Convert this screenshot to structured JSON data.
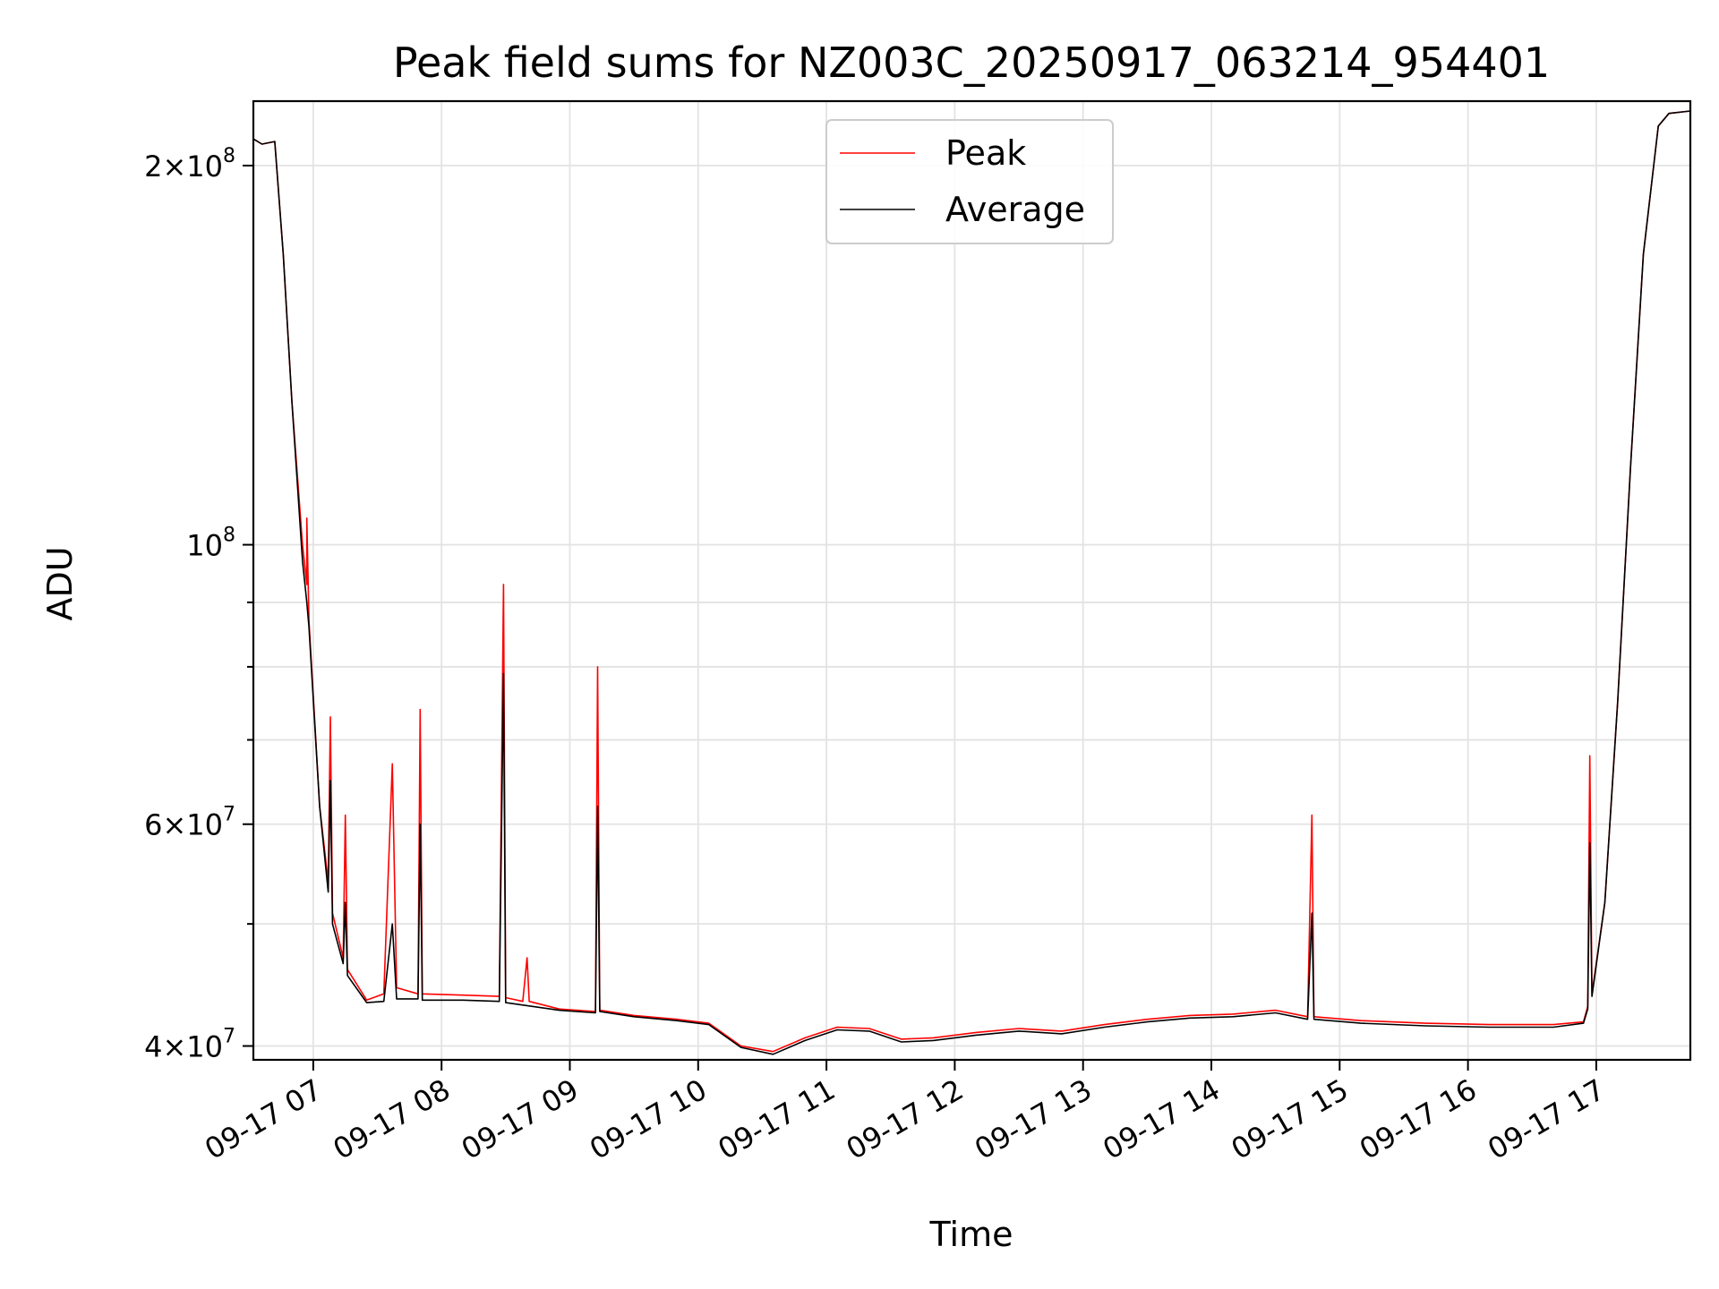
{
  "chart_data": {
    "type": "line",
    "title": "Peak field sums for NZ003C_20250917_063214_954401",
    "xlabel": "Time",
    "ylabel": "ADU",
    "y_scale": "log",
    "ylim": [
      39000000,
      225000000
    ],
    "xlim": [
      "2025-09-17 06:32",
      "2025-09-17 17:44"
    ],
    "grid": true,
    "legend": {
      "placement": "upper-center"
    },
    "x_ticks": [
      {
        "t": "2025-09-17 07:00",
        "label": "09-17 07"
      },
      {
        "t": "2025-09-17 08:00",
        "label": "09-17 08"
      },
      {
        "t": "2025-09-17 09:00",
        "label": "09-17 09"
      },
      {
        "t": "2025-09-17 10:00",
        "label": "09-17 10"
      },
      {
        "t": "2025-09-17 11:00",
        "label": "09-17 11"
      },
      {
        "t": "2025-09-17 12:00",
        "label": "09-17 12"
      },
      {
        "t": "2025-09-17 13:00",
        "label": "09-17 13"
      },
      {
        "t": "2025-09-17 14:00",
        "label": "09-17 14"
      },
      {
        "t": "2025-09-17 15:00",
        "label": "09-17 15"
      },
      {
        "t": "2025-09-17 16:00",
        "label": "09-17 16"
      },
      {
        "t": "2025-09-17 17:00",
        "label": "09-17 17"
      }
    ],
    "y_ticks": [
      {
        "value": 40000000,
        "mant": "4",
        "exp": "7"
      },
      {
        "value": 60000000,
        "mant": "6",
        "exp": "7"
      },
      {
        "value": 100000000,
        "mant": "",
        "exp": "8"
      },
      {
        "value": 200000000,
        "mant": "2",
        "exp": "8"
      }
    ],
    "y_minor_ticks": [
      50000000,
      70000000,
      80000000,
      90000000
    ],
    "series": [
      {
        "name": "Peak",
        "color": "#ff0000",
        "points": [
          [
            "2025-09-17 06:32",
            210000000
          ],
          [
            "2025-09-17 06:36",
            208000000
          ],
          [
            "2025-09-17 06:42",
            209000000
          ],
          [
            "2025-09-17 06:46",
            170000000
          ],
          [
            "2025-09-17 06:50",
            130000000
          ],
          [
            "2025-09-17 06:55",
            100000000
          ],
          [
            "2025-09-17 06:57",
            93000000
          ],
          [
            "2025-09-17 06:57",
            105000000
          ],
          [
            "2025-09-17 06:58",
            87000000
          ],
          [
            "2025-09-17 07:03",
            62000000
          ],
          [
            "2025-09-17 07:07",
            54000000
          ],
          [
            "2025-09-17 07:08",
            73000000
          ],
          [
            "2025-09-17 07:09",
            51000000
          ],
          [
            "2025-09-17 07:14",
            47000000
          ],
          [
            "2025-09-17 07:15",
            61000000
          ],
          [
            "2025-09-17 07:16",
            46000000
          ],
          [
            "2025-09-17 07:25",
            43500000
          ],
          [
            "2025-09-17 07:33",
            44000000
          ],
          [
            "2025-09-17 07:37",
            67000000
          ],
          [
            "2025-09-17 07:39",
            44500000
          ],
          [
            "2025-09-17 07:49",
            44000000
          ],
          [
            "2025-09-17 07:50",
            74000000
          ],
          [
            "2025-09-17 07:51",
            44000000
          ],
          [
            "2025-09-17 08:10",
            43900000
          ],
          [
            "2025-09-17 08:27",
            43800000
          ],
          [
            "2025-09-17 08:29",
            93000000
          ],
          [
            "2025-09-17 08:30",
            43700000
          ],
          [
            "2025-09-17 08:38",
            43400000
          ],
          [
            "2025-09-17 08:40",
            47000000
          ],
          [
            "2025-09-17 08:41",
            43400000
          ],
          [
            "2025-09-17 08:55",
            42800000
          ],
          [
            "2025-09-17 09:12",
            42600000
          ],
          [
            "2025-09-17 09:13",
            80000000
          ],
          [
            "2025-09-17 09:14",
            42700000
          ],
          [
            "2025-09-17 09:30",
            42300000
          ],
          [
            "2025-09-17 09:50",
            42000000
          ],
          [
            "2025-09-17 10:05",
            41700000
          ],
          [
            "2025-09-17 10:20",
            40000000
          ],
          [
            "2025-09-17 10:35",
            39600000
          ],
          [
            "2025-09-17 10:50",
            40600000
          ],
          [
            "2025-09-17 11:05",
            41400000
          ],
          [
            "2025-09-17 11:20",
            41300000
          ],
          [
            "2025-09-17 11:35",
            40500000
          ],
          [
            "2025-09-17 11:50",
            40600000
          ],
          [
            "2025-09-17 12:10",
            41000000
          ],
          [
            "2025-09-17 12:30",
            41300000
          ],
          [
            "2025-09-17 12:50",
            41100000
          ],
          [
            "2025-09-17 13:10",
            41600000
          ],
          [
            "2025-09-17 13:30",
            42000000
          ],
          [
            "2025-09-17 13:50",
            42300000
          ],
          [
            "2025-09-17 14:10",
            42400000
          ],
          [
            "2025-09-17 14:30",
            42700000
          ],
          [
            "2025-09-17 14:45",
            42200000
          ],
          [
            "2025-09-17 14:47",
            61000000
          ],
          [
            "2025-09-17 14:48",
            42200000
          ],
          [
            "2025-09-17 15:10",
            41900000
          ],
          [
            "2025-09-17 15:40",
            41700000
          ],
          [
            "2025-09-17 16:10",
            41600000
          ],
          [
            "2025-09-17 16:40",
            41600000
          ],
          [
            "2025-09-17 16:54",
            41800000
          ],
          [
            "2025-09-17 16:56",
            43000000
          ],
          [
            "2025-09-17 16:57",
            68000000
          ],
          [
            "2025-09-17 16:58",
            44000000
          ],
          [
            "2025-09-17 17:04",
            52000000
          ],
          [
            "2025-09-17 17:10",
            75000000
          ],
          [
            "2025-09-17 17:16",
            115000000
          ],
          [
            "2025-09-17 17:22",
            170000000
          ],
          [
            "2025-09-17 17:29",
            215000000
          ],
          [
            "2025-09-17 17:34",
            220000000
          ],
          [
            "2025-09-17 17:44",
            221000000
          ]
        ]
      },
      {
        "name": "Average",
        "color": "#000000",
        "points": [
          [
            "2025-09-17 06:32",
            210000000
          ],
          [
            "2025-09-17 06:36",
            208000000
          ],
          [
            "2025-09-17 06:42",
            209000000
          ],
          [
            "2025-09-17 06:46",
            170000000
          ],
          [
            "2025-09-17 06:50",
            130000000
          ],
          [
            "2025-09-17 06:55",
            97000000
          ],
          [
            "2025-09-17 06:57",
            90000000
          ],
          [
            "2025-09-17 06:58",
            86000000
          ],
          [
            "2025-09-17 07:03",
            62000000
          ],
          [
            "2025-09-17 07:07",
            53000000
          ],
          [
            "2025-09-17 07:08",
            65000000
          ],
          [
            "2025-09-17 07:09",
            50000000
          ],
          [
            "2025-09-17 07:14",
            46500000
          ],
          [
            "2025-09-17 07:15",
            52000000
          ],
          [
            "2025-09-17 07:16",
            45500000
          ],
          [
            "2025-09-17 07:25",
            43300000
          ],
          [
            "2025-09-17 07:33",
            43400000
          ],
          [
            "2025-09-17 07:37",
            50000000
          ],
          [
            "2025-09-17 07:39",
            43600000
          ],
          [
            "2025-09-17 07:49",
            43600000
          ],
          [
            "2025-09-17 07:50",
            60000000
          ],
          [
            "2025-09-17 07:51",
            43500000
          ],
          [
            "2025-09-17 08:10",
            43500000
          ],
          [
            "2025-09-17 08:27",
            43400000
          ],
          [
            "2025-09-17 08:29",
            79000000
          ],
          [
            "2025-09-17 08:30",
            43300000
          ],
          [
            "2025-09-17 08:55",
            42700000
          ],
          [
            "2025-09-17 09:12",
            42500000
          ],
          [
            "2025-09-17 09:13",
            62000000
          ],
          [
            "2025-09-17 09:14",
            42600000
          ],
          [
            "2025-09-17 09:30",
            42200000
          ],
          [
            "2025-09-17 09:50",
            41900000
          ],
          [
            "2025-09-17 10:05",
            41600000
          ],
          [
            "2025-09-17 10:20",
            39900000
          ],
          [
            "2025-09-17 10:35",
            39400000
          ],
          [
            "2025-09-17 10:50",
            40400000
          ],
          [
            "2025-09-17 11:05",
            41200000
          ],
          [
            "2025-09-17 11:20",
            41100000
          ],
          [
            "2025-09-17 11:35",
            40300000
          ],
          [
            "2025-09-17 11:50",
            40400000
          ],
          [
            "2025-09-17 12:10",
            40800000
          ],
          [
            "2025-09-17 12:30",
            41100000
          ],
          [
            "2025-09-17 12:50",
            40900000
          ],
          [
            "2025-09-17 13:10",
            41400000
          ],
          [
            "2025-09-17 13:30",
            41800000
          ],
          [
            "2025-09-17 13:50",
            42100000
          ],
          [
            "2025-09-17 14:10",
            42200000
          ],
          [
            "2025-09-17 14:30",
            42500000
          ],
          [
            "2025-09-17 14:45",
            42000000
          ],
          [
            "2025-09-17 14:47",
            51000000
          ],
          [
            "2025-09-17 14:48",
            42000000
          ],
          [
            "2025-09-17 15:10",
            41700000
          ],
          [
            "2025-09-17 15:40",
            41500000
          ],
          [
            "2025-09-17 16:10",
            41400000
          ],
          [
            "2025-09-17 16:40",
            41400000
          ],
          [
            "2025-09-17 16:54",
            41700000
          ],
          [
            "2025-09-17 16:56",
            42800000
          ],
          [
            "2025-09-17 16:57",
            58000000
          ],
          [
            "2025-09-17 16:58",
            43800000
          ],
          [
            "2025-09-17 17:04",
            52000000
          ],
          [
            "2025-09-17 17:10",
            75000000
          ],
          [
            "2025-09-17 17:16",
            115000000
          ],
          [
            "2025-09-17 17:22",
            170000000
          ],
          [
            "2025-09-17 17:29",
            215000000
          ],
          [
            "2025-09-17 17:34",
            220000000
          ],
          [
            "2025-09-17 17:44",
            221000000
          ]
        ]
      }
    ]
  }
}
